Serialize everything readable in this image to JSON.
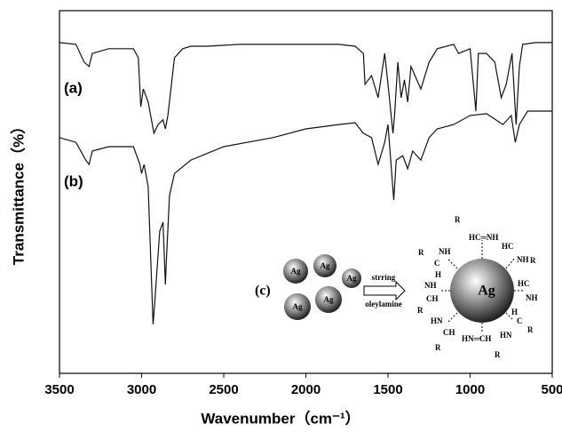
{
  "chart_data": {
    "type": "line",
    "xlabel": "Wavenumber（cm⁻¹）",
    "ylabel": "Transmittance（%）",
    "xlim": [
      3500,
      500
    ],
    "xticks": [
      3500,
      3000,
      2500,
      2000,
      1500,
      1000,
      500
    ],
    "ylim": [
      0,
      100
    ],
    "series": [
      {
        "name": "(a)",
        "color": "#111111",
        "x": [
          3500,
          3400,
          3350,
          3320,
          3300,
          3200,
          3050,
          3020,
          3005,
          2990,
          2960,
          2925,
          2900,
          2870,
          2855,
          2840,
          2800,
          2750,
          2700,
          2600,
          2400,
          2000,
          1800,
          1700,
          1650,
          1640,
          1600,
          1560,
          1520,
          1500,
          1470,
          1460,
          1440,
          1420,
          1400,
          1380,
          1360,
          1300,
          1250,
          1200,
          1100,
          1070,
          1000,
          965,
          950,
          900,
          850,
          810,
          780,
          745,
          720,
          700,
          680,
          600,
          500
        ],
        "values": [
          91.2,
          90.7,
          85.8,
          84.6,
          88.2,
          89.5,
          89.5,
          87.0,
          73.5,
          78.4,
          74.8,
          66.2,
          68.6,
          69.9,
          67.4,
          71.1,
          87.0,
          89.5,
          90.2,
          90.2,
          90.7,
          90.7,
          90.7,
          90.2,
          88.2,
          79.7,
          82.1,
          76.0,
          88.2,
          79.7,
          66.2,
          71.1,
          85.8,
          76.0,
          80.9,
          74.8,
          84.6,
          78.4,
          85.8,
          89.5,
          90.7,
          88.2,
          89.5,
          72.3,
          88.2,
          88.2,
          85.8,
          76.0,
          79.7,
          88.2,
          68.6,
          84.6,
          90.7,
          91.2,
          91.2
        ]
      },
      {
        "name": "(b)",
        "color": "#111111",
        "x": [
          3500,
          3400,
          3340,
          3320,
          3300,
          3200,
          3050,
          3010,
          3000,
          2985,
          2960,
          2930,
          2920,
          2890,
          2870,
          2855,
          2850,
          2830,
          2800,
          2700,
          2500,
          2200,
          2000,
          1800,
          1700,
          1650,
          1600,
          1560,
          1520,
          1500,
          1465,
          1450,
          1410,
          1380,
          1350,
          1300,
          1250,
          1200,
          1100,
          1000,
          900,
          800,
          750,
          725,
          700,
          650,
          600,
          500
        ],
        "values": [
          65.0,
          63.7,
          58.8,
          57.6,
          61.3,
          62.5,
          62.5,
          57.6,
          55.1,
          57.6,
          51.5,
          13.5,
          19.6,
          39.2,
          41.7,
          24.5,
          30.6,
          49.0,
          55.1,
          58.8,
          62.5,
          65.0,
          67.4,
          68.6,
          69.1,
          66.2,
          65.0,
          57.6,
          63.7,
          68.6,
          47.8,
          58.8,
          60.0,
          56.4,
          61.3,
          58.8,
          65.0,
          67.4,
          68.6,
          71.1,
          71.6,
          68.6,
          71.1,
          63.7,
          68.6,
          72.3,
          72.3,
          72.3
        ]
      }
    ],
    "inset": {
      "label": "(c)",
      "particles": [
        "Ag",
        "Ag",
        "Ag",
        "Ag",
        "Ag"
      ],
      "arrow_top": "strring",
      "arrow_bottom": "oleylamine",
      "core": "Ag",
      "ligands": [
        "R",
        "HC═NH",
        "HC",
        "NH",
        "R",
        "NH",
        "C",
        "H",
        "HC",
        "NH",
        "NH",
        "CH",
        "R",
        "H",
        "C",
        "R",
        "HN",
        "CH",
        "R",
        "HN",
        "HN═CH",
        "R",
        "R"
      ]
    }
  }
}
